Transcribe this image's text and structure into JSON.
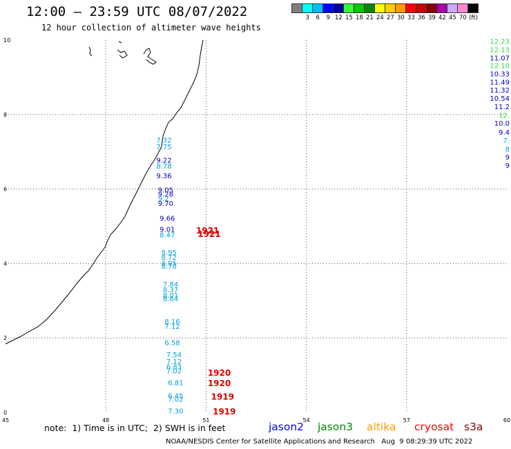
{
  "header": {
    "title": "12:00 – 23:59 UTC 08/07/2022",
    "subtitle": "12 hour collection of altimeter wave heights"
  },
  "legend": {
    "unit": "(ft)",
    "swatches": [
      {
        "color": "#7f7f7f",
        "label": ""
      },
      {
        "color": "#00ffff",
        "label": "3"
      },
      {
        "color": "#00bfff",
        "label": "6"
      },
      {
        "color": "#0000ff",
        "label": "9"
      },
      {
        "color": "#0000a0",
        "label": "12"
      },
      {
        "color": "#33ff33",
        "label": "15"
      },
      {
        "color": "#00cc00",
        "label": "18"
      },
      {
        "color": "#008800",
        "label": "21"
      },
      {
        "color": "#ffff00",
        "label": "24"
      },
      {
        "color": "#ffcc00",
        "label": "27"
      },
      {
        "color": "#ff9900",
        "label": "30"
      },
      {
        "color": "#ff0000",
        "label": "33"
      },
      {
        "color": "#cc0000",
        "label": "36"
      },
      {
        "color": "#880000",
        "label": "39"
      },
      {
        "color": "#aa00aa",
        "label": "42"
      },
      {
        "color": "#ccaaff",
        "label": "45"
      },
      {
        "color": "#ff88cc",
        "label": "70"
      },
      {
        "color": "#000000",
        "label": ""
      }
    ]
  },
  "map": {
    "x_ticks": [
      "45",
      "48",
      "51",
      "54",
      "57",
      "60"
    ],
    "y_ticks": [
      "0",
      "2",
      "4",
      "6",
      "8",
      "10"
    ],
    "x_range": [
      45,
      60
    ],
    "y_range": [
      0,
      10
    ],
    "grid": "dotted",
    "track_points": [
      {
        "lon": 49.8,
        "lat": 7.32,
        "label": "7.32",
        "color": "#00a0e0"
      },
      {
        "lon": 49.8,
        "lat": 7.14,
        "label": "7.75",
        "color": "#00a0e0"
      },
      {
        "lon": 49.8,
        "lat": 6.78,
        "label": "9.22",
        "color": "#0000c0"
      },
      {
        "lon": 49.8,
        "lat": 6.62,
        "label": "8.78",
        "color": "#00a0e0"
      },
      {
        "lon": 49.8,
        "lat": 6.36,
        "label": "9.36",
        "color": "#0000c0"
      },
      {
        "lon": 49.85,
        "lat": 5.98,
        "label": "9.05",
        "color": "#0000c0"
      },
      {
        "lon": 49.85,
        "lat": 5.87,
        "label": "9.28",
        "color": "#0000c0"
      },
      {
        "lon": 49.85,
        "lat": 5.75,
        "label": "9.2",
        "color": "#00a0e0"
      },
      {
        "lon": 49.85,
        "lat": 5.62,
        "label": "9.70",
        "color": "#0000c0"
      },
      {
        "lon": 49.9,
        "lat": 5.22,
        "label": "9.66",
        "color": "#0000c0"
      },
      {
        "lon": 49.9,
        "lat": 4.93,
        "label": "9.01",
        "color": "#0000c0"
      },
      {
        "lon": 49.9,
        "lat": 4.78,
        "label": "8.47",
        "color": "#00a0e0"
      },
      {
        "lon": 49.95,
        "lat": 4.3,
        "label": "8.95",
        "color": "#00a0e0"
      },
      {
        "lon": 49.95,
        "lat": 4.17,
        "label": "8.72",
        "color": "#00a0e0"
      },
      {
        "lon": 49.95,
        "lat": 4.02,
        "label": "8.95",
        "color": "#00a0e0"
      },
      {
        "lon": 49.95,
        "lat": 3.93,
        "label": "8.70",
        "color": "#00a0e0"
      },
      {
        "lon": 50.0,
        "lat": 3.45,
        "label": "7.84",
        "color": "#00a0e0"
      },
      {
        "lon": 50.0,
        "lat": 3.3,
        "label": "8.37",
        "color": "#00a0e0"
      },
      {
        "lon": 50.0,
        "lat": 3.15,
        "label": "8.01",
        "color": "#00a0e0"
      },
      {
        "lon": 50.0,
        "lat": 3.06,
        "label": "8.64",
        "color": "#00a0e0"
      },
      {
        "lon": 50.05,
        "lat": 2.45,
        "label": "8.16",
        "color": "#00a0e0"
      },
      {
        "lon": 50.05,
        "lat": 2.32,
        "label": "7.12",
        "color": "#00a0e0"
      },
      {
        "lon": 50.05,
        "lat": 1.88,
        "label": "6.58",
        "color": "#00a0e0"
      },
      {
        "lon": 50.1,
        "lat": 1.56,
        "label": "7.54",
        "color": "#00a0e0"
      },
      {
        "lon": 50.1,
        "lat": 1.37,
        "label": "7.12",
        "color": "#00a0e0"
      },
      {
        "lon": 50.1,
        "lat": 1.23,
        "label": "6.83",
        "color": "#00a0e0"
      },
      {
        "lon": 50.1,
        "lat": 1.12,
        "label": "7.02",
        "color": "#00a0e0"
      },
      {
        "lon": 50.15,
        "lat": 0.81,
        "label": "6.81",
        "color": "#00a0e0"
      },
      {
        "lon": 50.15,
        "lat": 0.45,
        "label": "6.45",
        "color": "#00a0e0"
      },
      {
        "lon": 50.15,
        "lat": 0.36,
        "label": "7.02",
        "color": "#00a0e0"
      },
      {
        "lon": 50.15,
        "lat": 0.05,
        "label": "7.30",
        "color": "#00a0e0"
      }
    ],
    "edge_points": [
      {
        "lat": 9.97,
        "label": "12.23",
        "color": "#33dd33"
      },
      {
        "lat": 9.75,
        "label": "12.13",
        "color": "#33dd33"
      },
      {
        "lat": 9.53,
        "label": "11.07",
        "color": "#0000c0"
      },
      {
        "lat": 9.32,
        "label": "12.10",
        "color": "#33dd33"
      },
      {
        "lat": 9.1,
        "label": "10.33",
        "color": "#0000c0"
      },
      {
        "lat": 8.88,
        "label": "11.49",
        "color": "#0000c0"
      },
      {
        "lat": 8.66,
        "label": "11.32",
        "color": "#0000c0"
      },
      {
        "lat": 8.44,
        "label": "10.54",
        "color": "#0000c0"
      },
      {
        "lat": 8.22,
        "label": "11.2",
        "color": "#0000c0"
      },
      {
        "lat": 7.99,
        "label": "12.",
        "color": "#33dd33"
      },
      {
        "lat": 7.77,
        "label": "10.0",
        "color": "#0000c0"
      },
      {
        "lat": 7.53,
        "label": "9.4",
        "color": "#0000c0"
      },
      {
        "lat": 7.31,
        "label": "7.",
        "color": "#00a0e0"
      },
      {
        "lat": 7.08,
        "label": "8",
        "color": "#00a0e0"
      },
      {
        "lat": 6.86,
        "label": "9",
        "color": "#0000c0"
      },
      {
        "lat": 6.64,
        "label": "9",
        "color": "#0000c0"
      }
    ],
    "pass_labels": [
      {
        "lon": 50.7,
        "lat": 4.88,
        "label": "1921"
      },
      {
        "lon": 50.75,
        "lat": 4.79,
        "label": "1921"
      },
      {
        "lon": 51.05,
        "lat": 1.06,
        "label": "1920"
      },
      {
        "lon": 51.05,
        "lat": 0.78,
        "label": "1920"
      },
      {
        "lon": 51.15,
        "lat": 0.42,
        "label": "1919"
      },
      {
        "lon": 51.2,
        "lat": 0.02,
        "label": "1919"
      }
    ]
  },
  "note": "note:  1) Time is in UTC;  2) SWH is in feet",
  "satellites": [
    {
      "name": "jason2",
      "color": "#0000ff"
    },
    {
      "name": "jason3",
      "color": "#008800"
    },
    {
      "name": "altika",
      "color": "#ff9900"
    },
    {
      "name": "cryosat",
      "color": "#ff0000"
    },
    {
      "name": "s3a",
      "color": "#880000"
    }
  ],
  "footer": {
    "credit": "NOAA/NESDIS Center for Satellite Applications and Research",
    "timestamp": "Aug  9 08:29:39 UTC 2022"
  }
}
